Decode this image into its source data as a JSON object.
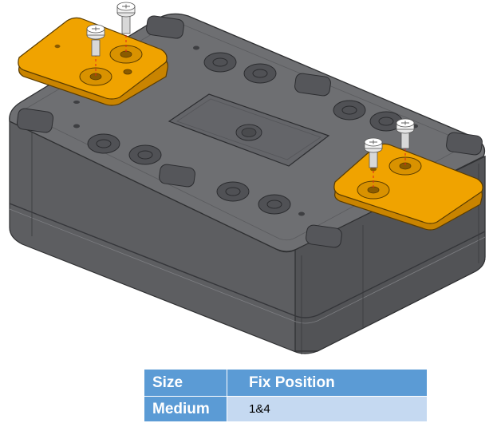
{
  "table": {
    "headers": [
      "Size",
      "Fix Position"
    ],
    "rows": [
      {
        "size": "Medium",
        "fix_position": "1&4"
      }
    ]
  },
  "colors": {
    "housing": "#6b6c6f",
    "housing_dark": "#4a4b4e",
    "bracket": "#f0a300",
    "table_header": "#5b9bd5",
    "table_cell": "#c5d9f1",
    "guide_line": "#e02020"
  }
}
